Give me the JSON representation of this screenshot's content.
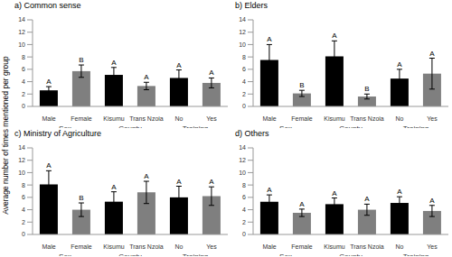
{
  "chart_data": [
    {
      "type": "bar",
      "title": "a) Common sense",
      "ylabel": "Average number of times mentioned per group",
      "categories": [
        "Male",
        "Female",
        "Kisumu",
        "Trans Nzoia",
        "No",
        "Yes"
      ],
      "groups": [
        "Sex",
        "County",
        "Training"
      ],
      "values": [
        2.6,
        5.7,
        5.1,
        3.3,
        4.6,
        3.8
      ],
      "errors": [
        0.6,
        1.0,
        1.2,
        0.6,
        1.3,
        0.8
      ],
      "annotations": [
        "A",
        "B",
        "A",
        "A",
        "A",
        "A"
      ],
      "colors": [
        "#000000",
        "#7f7f7f",
        "#000000",
        "#7f7f7f",
        "#000000",
        "#7f7f7f"
      ],
      "ylim": [
        0,
        14
      ],
      "yticks": [
        0,
        2,
        4,
        6,
        8,
        10,
        12,
        14
      ],
      "grid": false
    },
    {
      "type": "bar",
      "title": "b) Elders",
      "categories": [
        "Male",
        "Female",
        "Kisumu",
        "Trans Nzoia",
        "No",
        "Yes"
      ],
      "groups": [
        "Sex",
        "County",
        "Training"
      ],
      "values": [
        7.5,
        2.1,
        8.1,
        1.6,
        4.5,
        5.3
      ],
      "errors": [
        2.5,
        0.5,
        2.5,
        0.4,
        1.5,
        2.5
      ],
      "annotations": [
        "A",
        "B",
        "A",
        "B",
        "A",
        "A"
      ],
      "colors": [
        "#000000",
        "#7f7f7f",
        "#000000",
        "#7f7f7f",
        "#000000",
        "#7f7f7f"
      ],
      "ylim": [
        0,
        14
      ],
      "yticks": [
        0,
        2,
        4,
        6,
        8,
        10,
        12,
        14
      ],
      "grid": false
    },
    {
      "type": "bar",
      "title": "c) Ministry of Agriculture",
      "categories": [
        "Male",
        "Female",
        "Kisumu",
        "Trans Nzoia",
        "No",
        "Yes"
      ],
      "groups": [
        "Sex",
        "County",
        "Training"
      ],
      "values": [
        8.1,
        4.0,
        5.3,
        6.8,
        6.0,
        6.2
      ],
      "errors": [
        2.2,
        1.1,
        1.6,
        1.8,
        1.8,
        1.5
      ],
      "annotations": [
        "A",
        "B",
        "A",
        "A",
        "A",
        "A"
      ],
      "colors": [
        "#000000",
        "#7f7f7f",
        "#000000",
        "#7f7f7f",
        "#000000",
        "#7f7f7f"
      ],
      "ylim": [
        0,
        14
      ],
      "yticks": [
        0,
        2,
        4,
        6,
        8,
        10,
        12,
        14
      ],
      "grid": false
    },
    {
      "type": "bar",
      "title": "d) Others",
      "categories": [
        "Male",
        "Female",
        "Kisumu",
        "Trans Nzoia",
        "No",
        "Yes"
      ],
      "groups": [
        "Sex",
        "County",
        "Training"
      ],
      "values": [
        5.3,
        3.5,
        4.9,
        4.0,
        5.1,
        3.8
      ],
      "errors": [
        1.1,
        0.6,
        1.0,
        0.9,
        1.0,
        0.9
      ],
      "annotations": [
        "A",
        "A",
        "A",
        "A",
        "A",
        "A"
      ],
      "colors": [
        "#000000",
        "#7f7f7f",
        "#000000",
        "#7f7f7f",
        "#000000",
        "#7f7f7f"
      ],
      "ylim": [
        0,
        14
      ],
      "yticks": [
        0,
        2,
        4,
        6,
        8,
        10,
        12,
        14
      ],
      "grid": false
    }
  ]
}
